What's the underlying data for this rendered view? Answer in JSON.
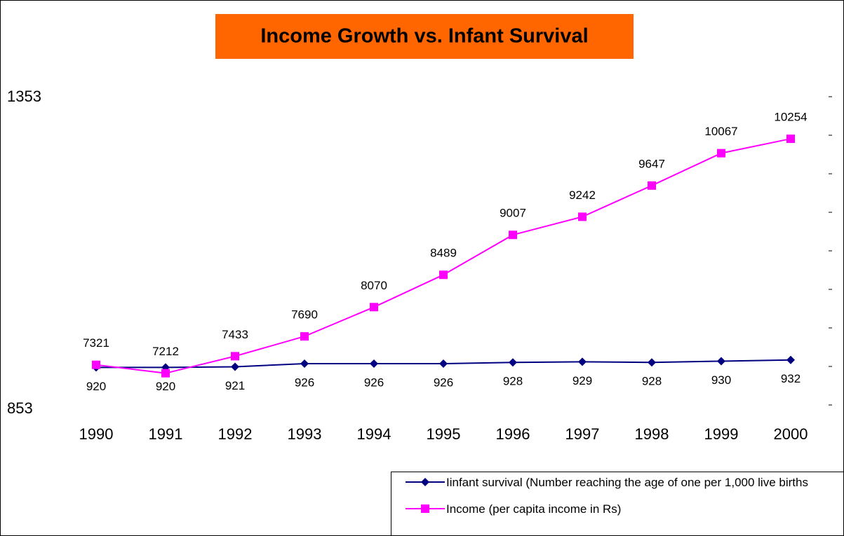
{
  "chart_data": {
    "type": "line",
    "title": "Income Growth vs. Infant Survival",
    "categories": [
      "1990",
      "1991",
      "1992",
      "1993",
      "1994",
      "1995",
      "1996",
      "1997",
      "1998",
      "1999",
      "2000"
    ],
    "series": [
      {
        "name": "Iinfant survival (Number reaching the age of one per 1,000 live births",
        "color": "#000080",
        "marker": "diamond",
        "values": [
          920,
          920,
          921,
          926,
          926,
          926,
          928,
          929,
          928,
          930,
          932
        ]
      },
      {
        "name": "Income (per capita income in Rs)",
        "color": "#ff00ff",
        "marker": "square",
        "axis": "y2",
        "values": [
          7321,
          7212,
          7433,
          7690,
          8070,
          8489,
          9007,
          9242,
          9647,
          10067,
          10254
        ]
      }
    ],
    "ylim": [
      853,
      1353
    ],
    "yticks": [
      853,
      1353
    ],
    "y2lim": [
      6800,
      10800
    ],
    "y2ticks": [
      6800,
      7300,
      7800,
      8300,
      8800,
      9300,
      9800,
      10300,
      10800
    ],
    "title_background": "#ff6600"
  }
}
